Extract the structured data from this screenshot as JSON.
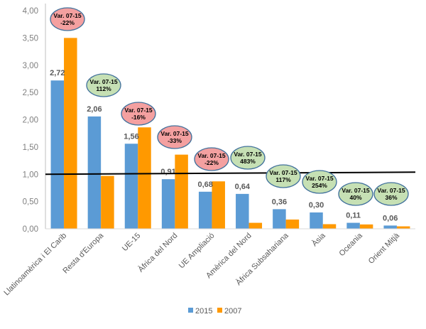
{
  "chart_data": {
    "type": "bar",
    "title": "",
    "xlabel": "",
    "ylabel": "",
    "ylim": [
      0,
      4
    ],
    "yticks": [
      "0,00",
      "0,50",
      "1,00",
      "1,50",
      "2,00",
      "2,50",
      "3,00",
      "3,50",
      "4,00"
    ],
    "grid": false,
    "legend_position": "bottom",
    "categories": [
      "Llatinoamèrica i El Carib",
      "Resta d'Europa",
      "UE-15",
      "Àfrica del Nord",
      "UE Ampliació",
      "Amèrica del Nord",
      "Àfrica Subsahariana",
      "Àsia",
      "Oceania",
      "Orient Mitjà"
    ],
    "series": [
      {
        "name": "2015",
        "color": "#5b9bd5",
        "values": [
          2.72,
          2.06,
          1.56,
          0.91,
          0.68,
          0.64,
          0.36,
          0.3,
          0.11,
          0.06
        ],
        "labels": [
          "2,72",
          "2,06",
          "1,56",
          "0,91",
          "0,68",
          "0,64",
          "0,36",
          "0,30",
          "0,11",
          "0,06"
        ]
      },
      {
        "name": "2007",
        "color": "#ff9900",
        "values": [
          3.5,
          0.97,
          1.86,
          1.36,
          0.87,
          0.11,
          0.17,
          0.085,
          0.08,
          0.045
        ]
      }
    ],
    "reference_line": {
      "y": 1.0,
      "color": "#000000"
    },
    "annotations": [
      {
        "line1": "Var. 07-15",
        "line2": "-22%",
        "color": "#f4a0a0"
      },
      {
        "line1": "Var. 07-15",
        "line2": "112%",
        "color": "#c6e0b4"
      },
      {
        "line1": "Var. 07-15",
        "line2": "-16%",
        "color": "#f4a0a0"
      },
      {
        "line1": "Var. 07-15",
        "line2": "-33%",
        "color": "#f4a0a0"
      },
      {
        "line1": "Var. 07-15",
        "line2": "-22%",
        "color": "#f4a0a0"
      },
      {
        "line1": "Var. 07-15",
        "line2": "483%",
        "color": "#c6e0b4"
      },
      {
        "line1": "Var. 07-15",
        "line2": "117%",
        "color": "#c6e0b4"
      },
      {
        "line1": "Var. 07-15",
        "line2": "254%",
        "color": "#c6e0b4"
      },
      {
        "line1": "Var. 07-15",
        "line2": "40%",
        "color": "#c6e0b4"
      },
      {
        "line1": "Var. 07-15",
        "line2": "36%",
        "color": "#c6e0b4"
      }
    ]
  }
}
